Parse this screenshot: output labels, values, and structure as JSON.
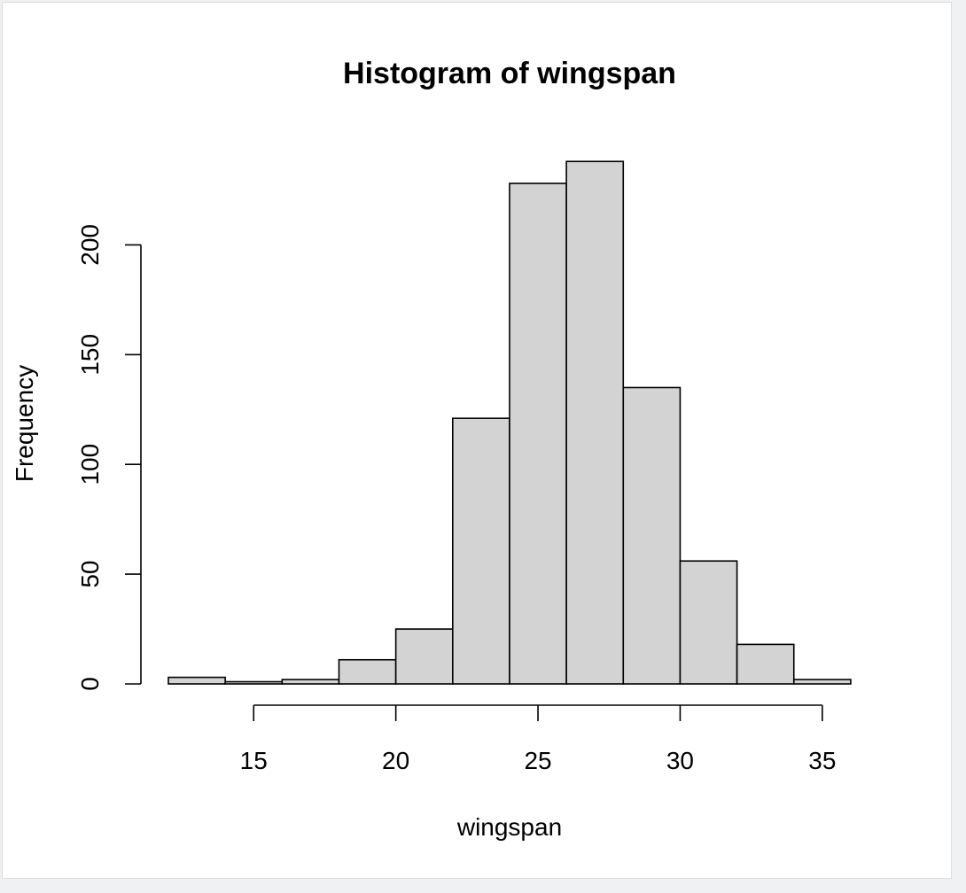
{
  "chart_data": {
    "type": "bar",
    "title": "Histogram of wingspan",
    "xlabel": "wingspan",
    "ylabel": "Frequency",
    "bins": [
      {
        "x0": 12,
        "x1": 14,
        "count": 3
      },
      {
        "x0": 14,
        "x1": 16,
        "count": 1
      },
      {
        "x0": 16,
        "x1": 18,
        "count": 2
      },
      {
        "x0": 18,
        "x1": 20,
        "count": 11
      },
      {
        "x0": 20,
        "x1": 22,
        "count": 25
      },
      {
        "x0": 22,
        "x1": 24,
        "count": 121
      },
      {
        "x0": 24,
        "x1": 26,
        "count": 228
      },
      {
        "x0": 26,
        "x1": 28,
        "count": 238
      },
      {
        "x0": 28,
        "x1": 30,
        "count": 135
      },
      {
        "x0": 30,
        "x1": 32,
        "count": 56
      },
      {
        "x0": 32,
        "x1": 34,
        "count": 18
      },
      {
        "x0": 34,
        "x1": 36,
        "count": 2
      }
    ],
    "x_ticks": [
      15,
      20,
      25,
      30,
      35
    ],
    "x_tick_labels": [
      "15",
      "20",
      "25",
      "30",
      "35"
    ],
    "y_ticks": [
      0,
      50,
      100,
      150,
      200
    ],
    "y_tick_labels": [
      "0",
      "50",
      "100",
      "150",
      "200"
    ],
    "xlim": [
      12,
      36
    ],
    "ylim": [
      0,
      240
    ],
    "grid": false,
    "bar_fill": "#d3d3d3",
    "bar_stroke": "#000000"
  }
}
